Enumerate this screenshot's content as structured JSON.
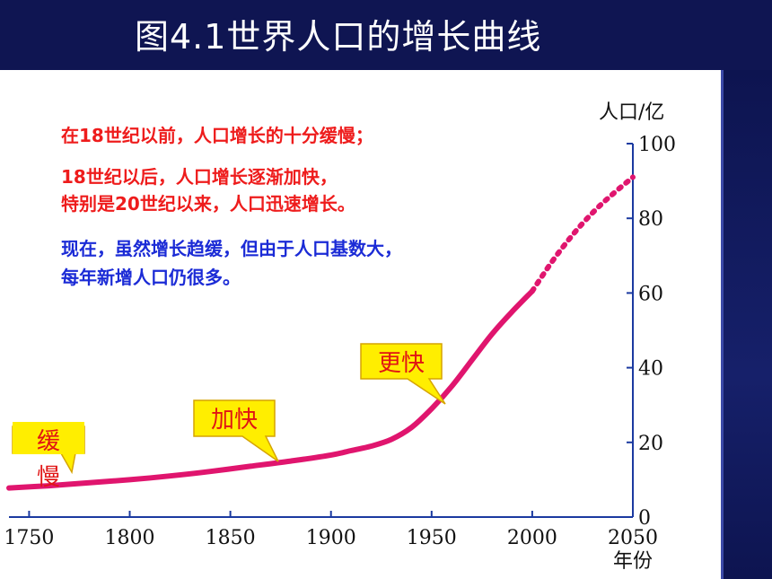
{
  "title": "图4.1世界人口的增长曲线",
  "notes": {
    "line1": "在18世纪以前，人口增长的十分缓慢；",
    "line2": "18世纪以后，人口增长逐渐加快，",
    "line3": "特别是20世纪以来，人口迅速增长。",
    "line4": "现在，虽然增长趋缓，但由于人口基数大，",
    "line5": "每年新增人口仍很多。"
  },
  "callouts": {
    "slow_1": "缓",
    "slow_2": "慢",
    "faster": "加快",
    "even_faster": "更快"
  },
  "colors": {
    "curve": "#e0156e",
    "callout_fill": "#ffee00",
    "note_red": "#ee1c1c",
    "note_blue": "#1b2bd6",
    "header": "#0f1552"
  },
  "chart_data": {
    "type": "line",
    "ylabel": "人口/亿",
    "xlabel": "年份",
    "xlim": [
      1740,
      2050
    ],
    "ylim": [
      0,
      100
    ],
    "x_ticks": [
      "1750",
      "1800",
      "1850",
      "1900",
      "1950",
      "2000",
      "2050"
    ],
    "y_ticks": [
      "0",
      "20",
      "40",
      "60",
      "80",
      "100"
    ],
    "series": [
      {
        "style": "solid",
        "x": [
          1740,
          1760,
          1780,
          1800,
          1820,
          1840,
          1860,
          1880,
          1900,
          1910,
          1920,
          1930,
          1940,
          1950,
          1960,
          1970,
          1980,
          1990,
          2000
        ],
        "y": [
          7.8,
          8.4,
          9.2,
          10.0,
          11.0,
          12.2,
          13.6,
          15.0,
          16.6,
          17.8,
          19.0,
          20.8,
          24.0,
          29.0,
          35.0,
          42.0,
          49.0,
          55.0,
          60.5
        ]
      },
      {
        "style": "dotted",
        "x": [
          2000,
          2010,
          2020,
          2030,
          2040,
          2050
        ],
        "y": [
          60.5,
          68.5,
          75.5,
          81.5,
          86.5,
          91.0
        ]
      }
    ]
  }
}
